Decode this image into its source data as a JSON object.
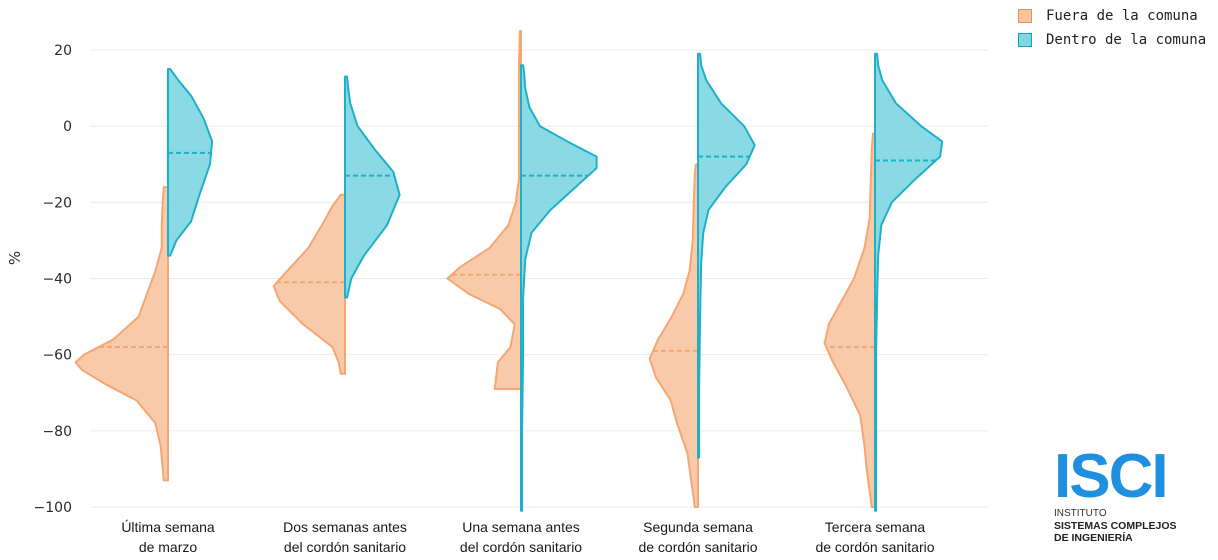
{
  "chart_data": {
    "type": "split-violin",
    "ylabel": "%",
    "ylim": [
      -100,
      20
    ],
    "yticks": [
      20,
      0,
      -20,
      -40,
      -60,
      -80,
      -100
    ],
    "ytick_labels": [
      "20",
      "0",
      "−20",
      "−40",
      "−60",
      "−80",
      "−100"
    ],
    "grid": true,
    "legend_position": "top-right",
    "categories": [
      [
        "Última semana",
        "de marzo"
      ],
      [
        "Dos semanas antes",
        "del cordón sanitario"
      ],
      [
        "Una semana antes",
        "del cordón sanitario"
      ],
      [
        "Segunda semana",
        "de cordón sanitario"
      ],
      [
        "Tercera semana",
        "de cordón sanitario"
      ]
    ],
    "series": [
      {
        "name": "Fuera de la comuna",
        "side": "left",
        "color": "#f5a672",
        "fill": "#f8c4a0",
        "ranges": [
          [
            -93,
            -16
          ],
          [
            -65,
            -18
          ],
          [
            -69,
            25
          ],
          [
            -100,
            -10
          ],
          [
            -100,
            -2
          ]
        ],
        "medians": [
          -58,
          -41,
          -39,
          -59,
          -58
        ],
        "profiles": [
          [
            [
              -93,
              0.04
            ],
            [
              -90,
              0.05
            ],
            [
              -84,
              0.07
            ],
            [
              -78,
              0.12
            ],
            [
              -72,
              0.3
            ],
            [
              -68,
              0.58
            ],
            [
              -64,
              0.82
            ],
            [
              -62,
              0.88
            ],
            [
              -60,
              0.8
            ],
            [
              -56,
              0.52
            ],
            [
              -50,
              0.28
            ],
            [
              -44,
              0.2
            ],
            [
              -38,
              0.12
            ],
            [
              -32,
              0.06
            ],
            [
              -26,
              0.06
            ],
            [
              -20,
              0.05
            ],
            [
              -16,
              0.04
            ]
          ],
          [
            [
              -65,
              0.04
            ],
            [
              -62,
              0.06
            ],
            [
              -58,
              0.12
            ],
            [
              -52,
              0.4
            ],
            [
              -46,
              0.62
            ],
            [
              -42,
              0.68
            ],
            [
              -38,
              0.55
            ],
            [
              -32,
              0.35
            ],
            [
              -26,
              0.22
            ],
            [
              -21,
              0.12
            ],
            [
              -18,
              0.04
            ]
          ],
          [
            [
              -69,
              0.25
            ],
            [
              -62,
              0.22
            ],
            [
              -58,
              0.1
            ],
            [
              -52,
              0.06
            ],
            [
              -48,
              0.2
            ],
            [
              -44,
              0.5
            ],
            [
              -40,
              0.7
            ],
            [
              -37,
              0.58
            ],
            [
              -32,
              0.3
            ],
            [
              -26,
              0.12
            ],
            [
              -20,
              0.05
            ],
            [
              -14,
              0.02
            ],
            [
              -5,
              0.02
            ],
            [
              5,
              0.02
            ],
            [
              15,
              0.02
            ],
            [
              25,
              0.01
            ]
          ],
          [
            [
              -100,
              0.03
            ],
            [
              -94,
              0.06
            ],
            [
              -86,
              0.1
            ],
            [
              -78,
              0.2
            ],
            [
              -72,
              0.26
            ],
            [
              -66,
              0.4
            ],
            [
              -61,
              0.46
            ],
            [
              -56,
              0.38
            ],
            [
              -50,
              0.25
            ],
            [
              -44,
              0.14
            ],
            [
              -38,
              0.08
            ],
            [
              -30,
              0.05
            ],
            [
              -20,
              0.04
            ],
            [
              -12,
              0.03
            ],
            [
              -10,
              0.02
            ]
          ],
          [
            [
              -100,
              0.03
            ],
            [
              -96,
              0.05
            ],
            [
              -90,
              0.08
            ],
            [
              -84,
              0.1
            ],
            [
              -76,
              0.14
            ],
            [
              -68,
              0.28
            ],
            [
              -62,
              0.4
            ],
            [
              -57,
              0.48
            ],
            [
              -52,
              0.44
            ],
            [
              -46,
              0.32
            ],
            [
              -40,
              0.2
            ],
            [
              -32,
              0.1
            ],
            [
              -24,
              0.05
            ],
            [
              -14,
              0.04
            ],
            [
              -6,
              0.03
            ],
            [
              -2,
              0.02
            ]
          ]
        ]
      },
      {
        "name": "Dentro de la comuna",
        "side": "right",
        "color": "#1fb0c8",
        "fill": "#7dd6e2",
        "ranges": [
          [
            -34,
            15
          ],
          [
            -45,
            13
          ],
          [
            -101,
            16
          ],
          [
            -87,
            19
          ],
          [
            -101,
            19
          ]
        ],
        "medians": [
          -7,
          -13,
          -13,
          -8,
          -9
        ],
        "profiles": [
          [
            [
              -34,
              0.02
            ],
            [
              -30,
              0.08
            ],
            [
              -25,
              0.22
            ],
            [
              -18,
              0.3
            ],
            [
              -10,
              0.4
            ],
            [
              -4,
              0.42
            ],
            [
              2,
              0.34
            ],
            [
              8,
              0.22
            ],
            [
              12,
              0.1
            ],
            [
              15,
              0.02
            ]
          ],
          [
            [
              -45,
              0.02
            ],
            [
              -40,
              0.06
            ],
            [
              -34,
              0.18
            ],
            [
              -26,
              0.4
            ],
            [
              -18,
              0.52
            ],
            [
              -12,
              0.46
            ],
            [
              -6,
              0.28
            ],
            [
              0,
              0.12
            ],
            [
              6,
              0.05
            ],
            [
              10,
              0.03
            ],
            [
              13,
              0.02
            ]
          ],
          [
            [
              -101,
              0.01
            ],
            [
              -80,
              0.01
            ],
            [
              -60,
              0.02
            ],
            [
              -45,
              0.02
            ],
            [
              -35,
              0.04
            ],
            [
              -28,
              0.1
            ],
            [
              -22,
              0.28
            ],
            [
              -16,
              0.52
            ],
            [
              -11,
              0.72
            ],
            [
              -8,
              0.72
            ],
            [
              -4,
              0.44
            ],
            [
              0,
              0.18
            ],
            [
              5,
              0.08
            ],
            [
              10,
              0.04
            ],
            [
              14,
              0.03
            ],
            [
              16,
              0.02
            ]
          ],
          [
            [
              -87,
              0.01
            ],
            [
              -70,
              0.01
            ],
            [
              -50,
              0.02
            ],
            [
              -36,
              0.03
            ],
            [
              -28,
              0.05
            ],
            [
              -22,
              0.1
            ],
            [
              -16,
              0.26
            ],
            [
              -10,
              0.46
            ],
            [
              -5,
              0.54
            ],
            [
              0,
              0.44
            ],
            [
              6,
              0.22
            ],
            [
              12,
              0.08
            ],
            [
              16,
              0.03
            ],
            [
              19,
              0.02
            ]
          ],
          [
            [
              -101,
              0.01
            ],
            [
              -80,
              0.01
            ],
            [
              -60,
              0.01
            ],
            [
              -45,
              0.02
            ],
            [
              -34,
              0.03
            ],
            [
              -26,
              0.06
            ],
            [
              -20,
              0.16
            ],
            [
              -14,
              0.38
            ],
            [
              -8,
              0.62
            ],
            [
              -4,
              0.64
            ],
            [
              0,
              0.44
            ],
            [
              6,
              0.2
            ],
            [
              12,
              0.07
            ],
            [
              16,
              0.03
            ],
            [
              19,
              0.02
            ]
          ]
        ]
      }
    ]
  },
  "legend": {
    "items": [
      {
        "label": "Fuera de la comuna",
        "fill": "#f8c4a0",
        "border": "#e8915a"
      },
      {
        "label": "Dentro de la comuna",
        "fill": "#7dd6e2",
        "border": "#1aa0b8"
      }
    ]
  },
  "logo": {
    "mark": "ISCI",
    "line1": "INSTITUTO",
    "line2": "SISTEMAS COMPLEJOS",
    "line3": "DE INGENIERÍA"
  }
}
